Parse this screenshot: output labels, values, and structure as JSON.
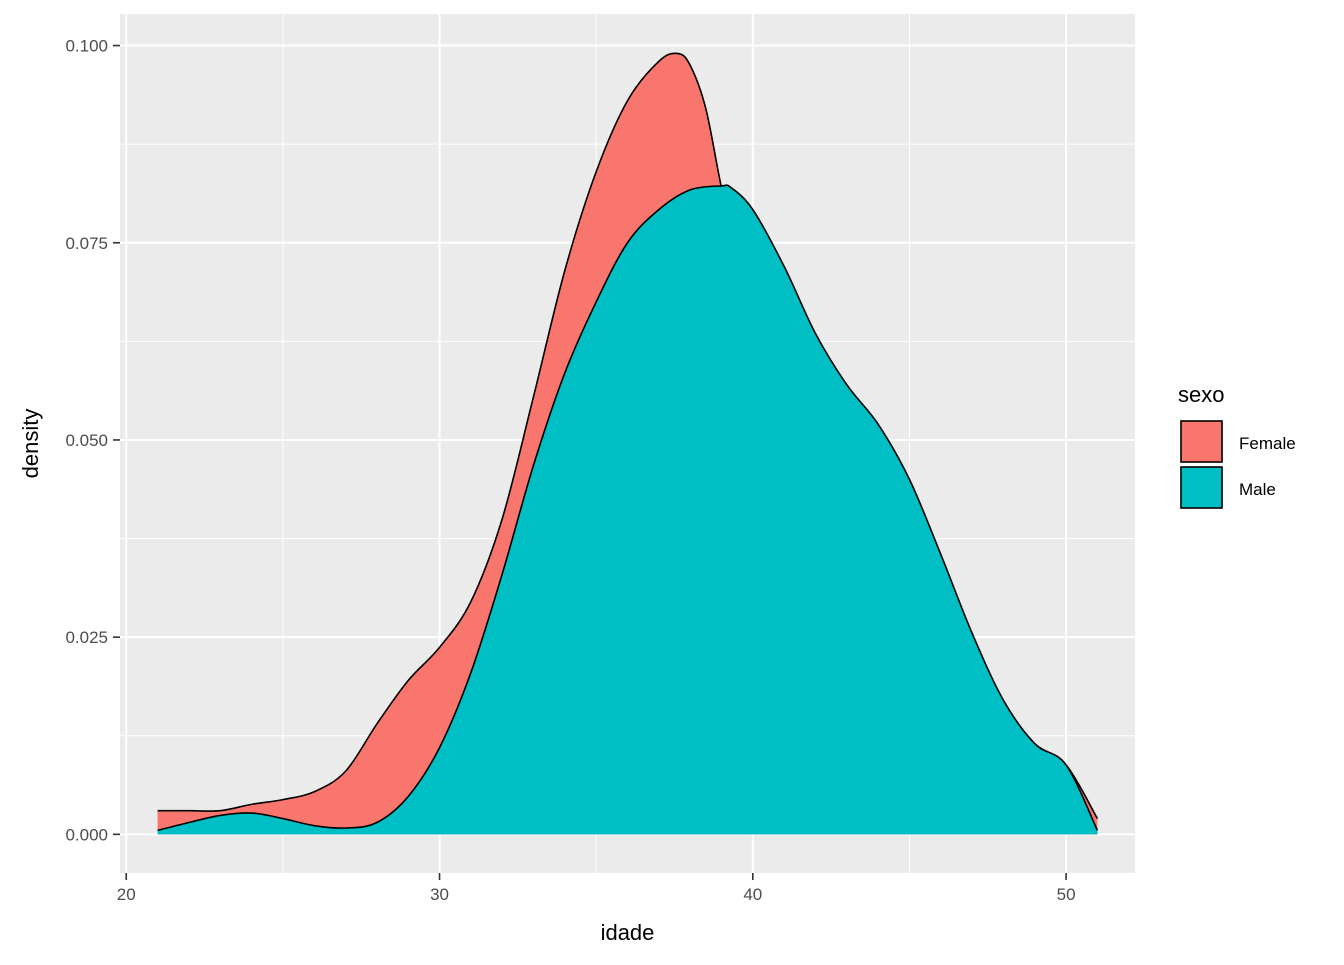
{
  "chart_data": {
    "type": "area",
    "subtype": "density",
    "title": "",
    "xlabel": "idade",
    "ylabel": "density",
    "xlim": [
      19.8,
      52.2
    ],
    "ylim": [
      -0.0049,
      0.104
    ],
    "x_ticks": [
      20,
      30,
      40,
      50
    ],
    "x_tick_labels": [
      "20",
      "30",
      "40",
      "50"
    ],
    "y_ticks": [
      0.0,
      0.025,
      0.05,
      0.075,
      0.1
    ],
    "y_tick_labels": [
      "0.000",
      "0.025",
      "0.050",
      "0.075",
      "0.100"
    ],
    "grid": true,
    "legend": {
      "title": "sexo",
      "position": "right"
    },
    "series": [
      {
        "name": "Female",
        "color": "#F8766D",
        "x": [
          21,
          22,
          23,
          24,
          25,
          26,
          27,
          28,
          29,
          30,
          31,
          32,
          33,
          34,
          35,
          36,
          37,
          37.6,
          38,
          38.5,
          39,
          39.5,
          40,
          41,
          42,
          43,
          44,
          45,
          46,
          47,
          48,
          49,
          50,
          51
        ],
        "y": [
          0.003,
          0.003,
          0.003,
          0.0038,
          0.0044,
          0.0054,
          0.008,
          0.014,
          0.0195,
          0.0237,
          0.0295,
          0.04,
          0.0555,
          0.0715,
          0.084,
          0.093,
          0.098,
          0.099,
          0.0975,
          0.092,
          0.082,
          0.074,
          0.069,
          0.064,
          0.06,
          0.055,
          0.05,
          0.0435,
          0.034,
          0.0245,
          0.0165,
          0.0115,
          0.0088,
          0.002
        ]
      },
      {
        "name": "Male",
        "color": "#00BFC4",
        "x": [
          21,
          22,
          23,
          24,
          25,
          26,
          27,
          28,
          29,
          30,
          31,
          32,
          33,
          34,
          35,
          36,
          37,
          38,
          39,
          39.3,
          40,
          41,
          42,
          43,
          44,
          45,
          46,
          47,
          48,
          49,
          50,
          51
        ],
        "y": [
          0.0005,
          0.0015,
          0.0024,
          0.0027,
          0.002,
          0.0011,
          0.0008,
          0.0015,
          0.0048,
          0.011,
          0.0205,
          0.033,
          0.0468,
          0.0585,
          0.0675,
          0.075,
          0.0792,
          0.0817,
          0.0822,
          0.082,
          0.0792,
          0.072,
          0.0635,
          0.057,
          0.052,
          0.045,
          0.0355,
          0.0255,
          0.017,
          0.0115,
          0.0088,
          0.0005
        ]
      }
    ]
  }
}
